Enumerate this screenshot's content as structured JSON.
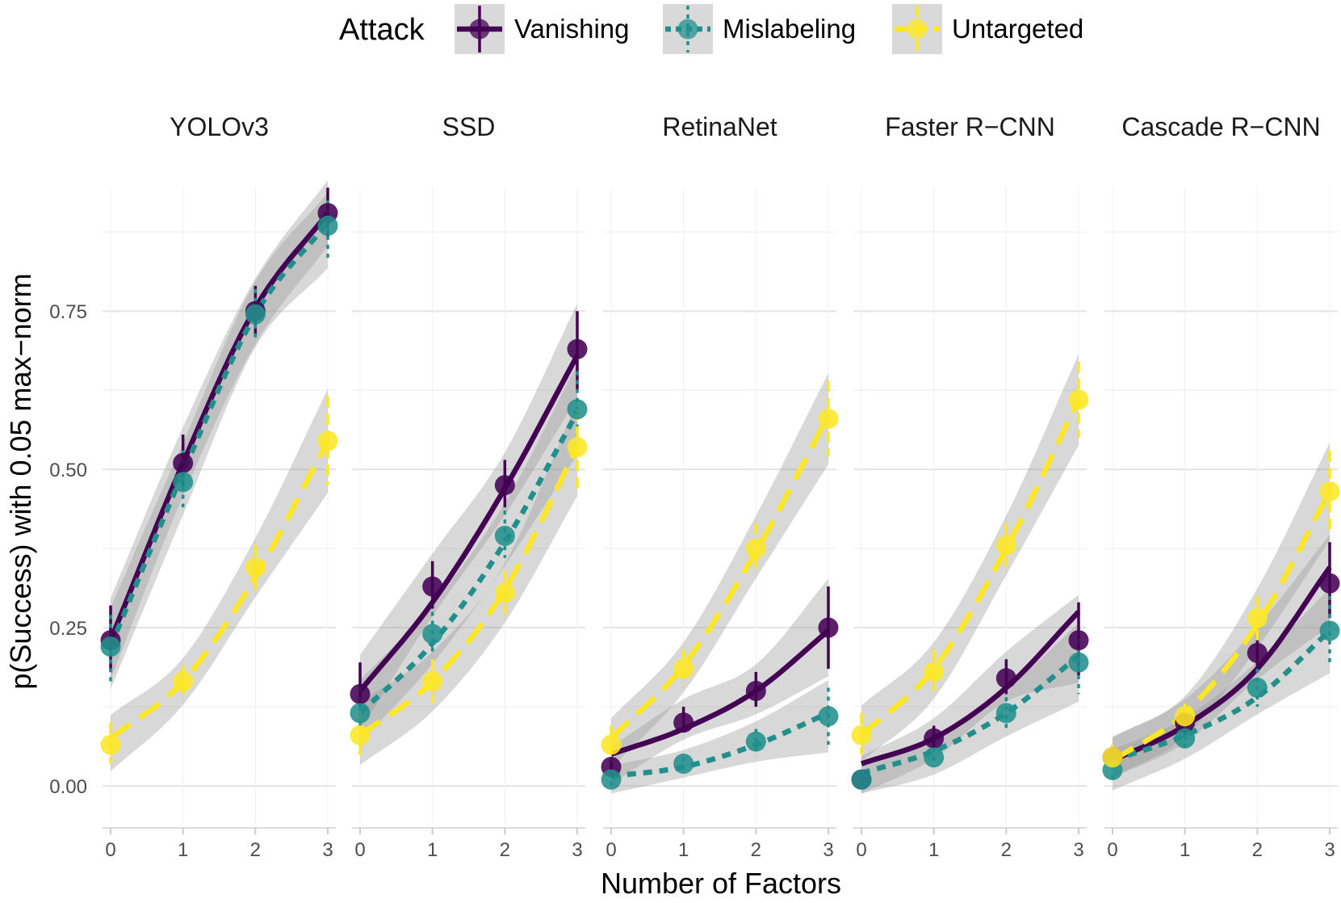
{
  "chart_data": {
    "type": "line",
    "xlabel": "Number of Factors",
    "ylabel": "p(Success) with 0.05 max−norm",
    "x": [
      0,
      1,
      2,
      3
    ],
    "x_tick_labels": [
      "0",
      "1",
      "2",
      "3"
    ],
    "ylim": [
      -0.06,
      0.92
    ],
    "y_ticks": [
      0.0,
      0.25,
      0.5,
      0.75
    ],
    "y_tick_labels": [
      "0.00",
      "0.25",
      "0.50",
      "0.75"
    ],
    "grid": true,
    "legend": {
      "title": "Attack",
      "position": "top",
      "entries": [
        {
          "name": "Vanishing",
          "color": "#440154",
          "linestyle": "solid"
        },
        {
          "name": "Mislabeling",
          "color": "#21908C",
          "linestyle": "dotted"
        },
        {
          "name": "Untargeted",
          "color": "#FDE725",
          "linestyle": "dashed"
        }
      ]
    },
    "panels": [
      {
        "title": "YOLOv3",
        "series": [
          {
            "name": "Vanishing",
            "points": [
              0.23,
              0.51,
              0.75,
              0.905
            ],
            "lower": [
              0.18,
              0.47,
              0.71,
              0.865
            ],
            "upper": [
              0.285,
              0.555,
              0.79,
              0.945
            ],
            "fit": [
              0.23,
              0.51,
              0.755,
              0.905
            ]
          },
          {
            "name": "Mislabeling",
            "points": [
              0.22,
              0.48,
              0.745,
              0.885
            ],
            "lower": [
              0.165,
              0.44,
              0.705,
              0.83
            ],
            "upper": [
              0.27,
              0.53,
              0.785,
              0.925
            ],
            "fit": [
              0.22,
              0.495,
              0.745,
              0.89
            ]
          },
          {
            "name": "Untargeted",
            "points": [
              0.065,
              0.165,
              0.345,
              0.545
            ],
            "lower": [
              0.035,
              0.14,
              0.31,
              0.475
            ],
            "upper": [
              0.1,
              0.19,
              0.38,
              0.615
            ],
            "fit": [
              0.075,
              0.165,
              0.33,
              0.545
            ]
          }
        ]
      },
      {
        "title": "SSD",
        "series": [
          {
            "name": "Vanishing",
            "points": [
              0.145,
              0.315,
              0.475,
              0.69
            ],
            "lower": [
              0.1,
              0.28,
              0.44,
              0.625
            ],
            "upper": [
              0.195,
              0.355,
              0.515,
              0.75
            ],
            "fit": [
              0.15,
              0.29,
              0.47,
              0.68
            ]
          },
          {
            "name": "Mislabeling",
            "points": [
              0.115,
              0.24,
              0.395,
              0.595
            ],
            "lower": [
              0.08,
              0.205,
              0.36,
              0.535
            ],
            "upper": [
              0.155,
              0.275,
              0.435,
              0.655
            ],
            "fit": [
              0.115,
              0.225,
              0.385,
              0.59
            ]
          },
          {
            "name": "Untargeted",
            "points": [
              0.08,
              0.165,
              0.305,
              0.535
            ],
            "lower": [
              0.045,
              0.13,
              0.27,
              0.47
            ],
            "upper": [
              0.12,
              0.2,
              0.34,
              0.595
            ],
            "fit": [
              0.08,
              0.165,
              0.31,
              0.535
            ]
          }
        ]
      },
      {
        "title": "RetinaNet",
        "series": [
          {
            "name": "Vanishing",
            "points": [
              0.03,
              0.1,
              0.15,
              0.25
            ],
            "lower": [
              0.015,
              0.085,
              0.125,
              0.185
            ],
            "upper": [
              0.045,
              0.125,
              0.18,
              0.315
            ],
            "fit": [
              0.05,
              0.09,
              0.15,
              0.245
            ]
          },
          {
            "name": "Mislabeling",
            "points": [
              0.01,
              0.035,
              0.07,
              0.11
            ],
            "lower": [
              0.0,
              0.025,
              0.05,
              0.065
            ],
            "upper": [
              0.02,
              0.045,
              0.09,
              0.155
            ],
            "fit": [
              0.015,
              0.03,
              0.065,
              0.115
            ]
          },
          {
            "name": "Untargeted",
            "points": [
              0.065,
              0.185,
              0.375,
              0.58
            ],
            "lower": [
              0.04,
              0.16,
              0.34,
              0.52
            ],
            "upper": [
              0.095,
              0.215,
              0.415,
              0.64
            ],
            "fit": [
              0.075,
              0.19,
              0.37,
              0.585
            ]
          }
        ]
      },
      {
        "title": "Faster R−CNN",
        "series": [
          {
            "name": "Vanishing",
            "points": [
              0.01,
              0.075,
              0.17,
              0.23
            ],
            "lower": [
              0.0,
              0.055,
              0.145,
              0.175
            ],
            "upper": [
              0.02,
              0.095,
              0.2,
              0.29
            ],
            "fit": [
              0.035,
              0.075,
              0.155,
              0.275
            ]
          },
          {
            "name": "Mislabeling",
            "points": [
              0.01,
              0.045,
              0.115,
              0.195
            ],
            "lower": [
              0.0,
              0.03,
              0.09,
              0.145
            ],
            "upper": [
              0.02,
              0.06,
              0.14,
              0.245
            ],
            "fit": [
              0.02,
              0.055,
              0.115,
              0.205
            ]
          },
          {
            "name": "Untargeted",
            "points": [
              0.08,
              0.18,
              0.38,
              0.61
            ],
            "lower": [
              0.05,
              0.15,
              0.345,
              0.55
            ],
            "upper": [
              0.115,
              0.215,
              0.415,
              0.67
            ],
            "fit": [
              0.08,
              0.185,
              0.375,
              0.61
            ]
          }
        ]
      },
      {
        "title": "Cascade R−CNN",
        "series": [
          {
            "name": "Vanishing",
            "points": [
              0.045,
              0.1,
              0.21,
              0.32
            ],
            "lower": [
              0.025,
              0.08,
              0.18,
              0.265
            ],
            "upper": [
              0.065,
              0.125,
              0.24,
              0.385
            ],
            "fit": [
              0.04,
              0.095,
              0.185,
              0.345
            ]
          },
          {
            "name": "Mislabeling",
            "points": [
              0.025,
              0.075,
              0.155,
              0.245
            ],
            "lower": [
              0.005,
              0.055,
              0.125,
              0.19
            ],
            "upper": [
              0.045,
              0.095,
              0.185,
              0.3
            ],
            "fit": [
              0.04,
              0.08,
              0.14,
              0.245
            ]
          },
          {
            "name": "Untargeted",
            "points": [
              0.045,
              0.11,
              0.265,
              0.465
            ],
            "lower": [
              0.025,
              0.09,
              0.23,
              0.4
            ],
            "upper": [
              0.065,
              0.13,
              0.3,
              0.53
            ],
            "fit": [
              0.04,
              0.115,
              0.255,
              0.465
            ]
          }
        ]
      }
    ]
  }
}
